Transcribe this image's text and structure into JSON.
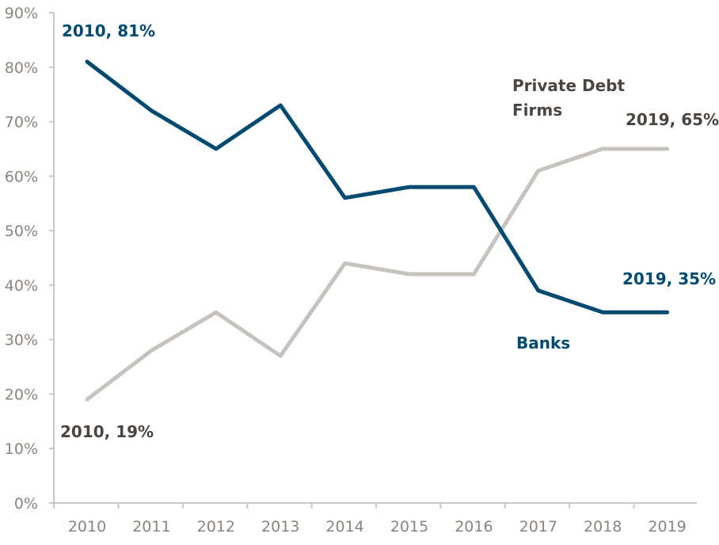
{
  "chart_data": {
    "type": "line",
    "x": [
      "2010",
      "2011",
      "2012",
      "2013",
      "2014",
      "2015",
      "2016",
      "2017",
      "2018",
      "2019"
    ],
    "series": [
      {
        "name": "Banks",
        "values": [
          81,
          72,
          65,
          73,
          56,
          58,
          58,
          39,
          35,
          35
        ],
        "color": "#004a70"
      },
      {
        "name": "Private Debt Firms",
        "values": [
          19,
          28,
          35,
          27,
          44,
          42,
          42,
          61,
          65,
          65
        ],
        "color": "#c6c3bf"
      }
    ],
    "ylim": [
      0,
      90
    ],
    "yticks": [
      "0%",
      "10%",
      "20%",
      "30%",
      "40%",
      "50%",
      "60%",
      "70%",
      "80%",
      "90%"
    ],
    "grid": false,
    "legend": "inline labels",
    "annotations": {
      "banks_start": "2010, 81%",
      "banks_end": "2019, 35%",
      "private_start": "2010, 19%",
      "private_end": "2019, 65%",
      "banks_label": "Banks",
      "private_label_line1": "Private Debt",
      "private_label_line2": "Firms"
    },
    "colors": {
      "axis": "#c9c6c3",
      "tick_text": "#8b847e",
      "private_text": "#4a4541"
    }
  }
}
